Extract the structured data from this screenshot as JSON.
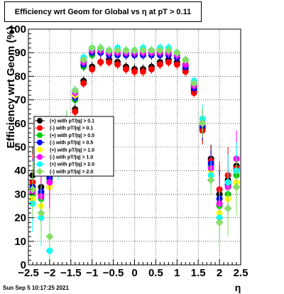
{
  "title": "Efficiency wrt Geom for Global vs   η  at pT > 0.11",
  "timestamp": "Sun Sep  5 10:17:25 2021",
  "chart_data": {
    "type": "scatter",
    "title": "Efficiency wrt Geom for Global vs   η  at pT > 0.11",
    "xlabel": "η",
    "ylabel": "Efficiency wrt Geom (%)",
    "xlim": [
      -2.5,
      2.5
    ],
    "ylim": [
      0,
      100
    ],
    "x_ticks": [
      "−2.5",
      "−2",
      "−1.5",
      "−1",
      "−0.5",
      "0",
      "0.5",
      "1",
      "1.5",
      "2",
      "2.5"
    ],
    "y_ticks": [
      "0",
      "10",
      "20",
      "30",
      "40",
      "50",
      "60",
      "70",
      "80",
      "90",
      "100"
    ],
    "grid": true,
    "legend_position": "left-middle",
    "series": [
      {
        "name": "(+) with pT/|q| > 0.1",
        "color": "#000000",
        "marker": "circle",
        "x": [
          -2.4,
          -2.2,
          -2.0,
          -1.8,
          -1.6,
          -1.4,
          -1.2,
          -1.0,
          -0.8,
          -0.6,
          -0.4,
          -0.2,
          0.0,
          0.2,
          0.4,
          0.6,
          0.8,
          1.0,
          1.2,
          1.4,
          1.6,
          1.8,
          2.0,
          2.2,
          2.4
        ],
        "y": [
          38,
          33,
          40,
          48,
          56,
          66,
          78,
          84,
          86,
          87,
          86,
          84,
          83,
          83,
          84,
          86,
          87,
          86,
          83,
          74,
          58,
          45,
          30,
          36,
          42
        ]
      },
      {
        "name": "(-) with pT/|q| > 0.1",
        "color": "#ff0000",
        "marker": "circle",
        "x": [
          -2.4,
          -2.2,
          -2.0,
          -1.8,
          -1.6,
          -1.4,
          -1.2,
          -1.0,
          -0.8,
          -0.6,
          -0.4,
          -0.2,
          0.0,
          0.2,
          0.4,
          0.6,
          0.8,
          1.0,
          1.2,
          1.4,
          1.6,
          1.8,
          2.0,
          2.2,
          2.4
        ],
        "y": [
          35,
          30,
          38,
          46,
          55,
          65,
          77,
          83,
          86,
          86,
          85,
          83,
          82,
          82,
          83,
          85,
          86,
          85,
          82,
          73,
          57,
          44,
          32,
          38,
          41
        ]
      },
      {
        "name": "(+) with pT/|q| > 0.5",
        "color": "#00cc00",
        "marker": "circle",
        "x": [
          -2.4,
          -2.2,
          -2.0,
          -1.8,
          -1.6,
          -1.4,
          -1.2,
          -1.0,
          -0.8,
          -0.6,
          -0.4,
          -0.2,
          0.0,
          0.2,
          0.4,
          0.6,
          0.8,
          1.0,
          1.2,
          1.4,
          1.6,
          1.8,
          2.0,
          2.2,
          2.4
        ],
        "y": [
          30,
          28,
          36,
          45,
          57,
          70,
          84,
          89,
          90,
          89,
          89,
          89,
          89,
          89,
          89,
          89,
          90,
          89,
          85,
          76,
          60,
          42,
          25,
          30,
          38
        ]
      },
      {
        "name": "(-) with pT/|q| > 0.5",
        "color": "#0000ff",
        "marker": "circle",
        "x": [
          -2.4,
          -2.2,
          -2.0,
          -1.8,
          -1.6,
          -1.4,
          -1.2,
          -1.0,
          -0.8,
          -0.6,
          -0.4,
          -0.2,
          0.0,
          0.2,
          0.4,
          0.6,
          0.8,
          1.0,
          1.2,
          1.4,
          1.6,
          1.8,
          2.0,
          2.2,
          2.4
        ],
        "y": [
          33,
          31,
          37,
          47,
          58,
          71,
          85,
          90,
          90,
          89,
          89,
          89,
          89,
          89,
          89,
          89,
          89,
          88,
          84,
          75,
          59,
          43,
          28,
          34,
          40
        ]
      },
      {
        "name": "(+) with pT/|q| > 1.0",
        "color": "#ffff00",
        "marker": "circle",
        "x": [
          -2.4,
          -2.2,
          -2.0,
          -1.8,
          -1.6,
          -1.4,
          -1.2,
          -1.0,
          -0.8,
          -0.6,
          -0.4,
          -0.2,
          0.0,
          0.2,
          0.4,
          0.6,
          0.8,
          1.0,
          1.2,
          1.4,
          1.6,
          1.8,
          2.0,
          2.2,
          2.4
        ],
        "y": [
          28,
          25,
          33,
          44,
          58,
          72,
          86,
          91,
          91,
          90,
          90,
          90,
          90,
          90,
          90,
          90,
          90,
          89,
          86,
          77,
          61,
          40,
          22,
          28,
          35
        ]
      },
      {
        "name": "(-) with pT/|q| > 1.0",
        "color": "#ff00ff",
        "marker": "circle",
        "x": [
          -2.4,
          -2.2,
          -2.0,
          -1.8,
          -1.6,
          -1.4,
          -1.2,
          -1.0,
          -0.8,
          -0.6,
          -0.4,
          -0.2,
          0.0,
          0.2,
          0.4,
          0.6,
          0.8,
          1.0,
          1.2,
          1.4,
          1.6,
          1.8,
          2.0,
          2.2,
          2.4
        ],
        "y": [
          31,
          29,
          35,
          46,
          59,
          73,
          86,
          91,
          91,
          90,
          90,
          90,
          90,
          90,
          90,
          90,
          90,
          89,
          85,
          76,
          60,
          41,
          26,
          33,
          45
        ]
      },
      {
        "name": "(+) with pT/|q| > 2.0",
        "color": "#00ffff",
        "marker": "circle",
        "x": [
          -2.4,
          -2.2,
          -2.0,
          -1.8,
          -1.6,
          -1.4,
          -1.2,
          -1.0,
          -0.8,
          -0.6,
          -0.4,
          -0.2,
          0.0,
          0.2,
          0.4,
          0.6,
          0.8,
          1.0,
          1.2,
          1.4,
          1.6,
          1.8,
          2.0,
          2.2,
          2.4
        ],
        "y": [
          26,
          20,
          6,
          42,
          59,
          74,
          88,
          92,
          92,
          91,
          92,
          91,
          91,
          92,
          91,
          92,
          92,
          90,
          87,
          78,
          62,
          38,
          20,
          35,
          40
        ]
      },
      {
        "name": "(-) with pT/|q| > 2.0",
        "color": "#88dd66",
        "marker": "diamond",
        "x": [
          -2.4,
          -2.2,
          -2.0,
          -1.8,
          -1.6,
          -1.4,
          -1.2,
          -1.0,
          -0.8,
          -0.6,
          -0.4,
          -0.2,
          0.0,
          0.2,
          0.4,
          0.6,
          0.8,
          1.0,
          1.2,
          1.4,
          1.6,
          1.8,
          2.0,
          2.2,
          2.4
        ],
        "y": [
          32,
          22,
          12,
          44,
          60,
          74,
          87,
          92,
          92,
          91,
          91,
          91,
          91,
          91,
          91,
          91,
          91,
          90,
          87,
          77,
          60,
          36,
          18,
          24,
          33
        ]
      }
    ]
  }
}
